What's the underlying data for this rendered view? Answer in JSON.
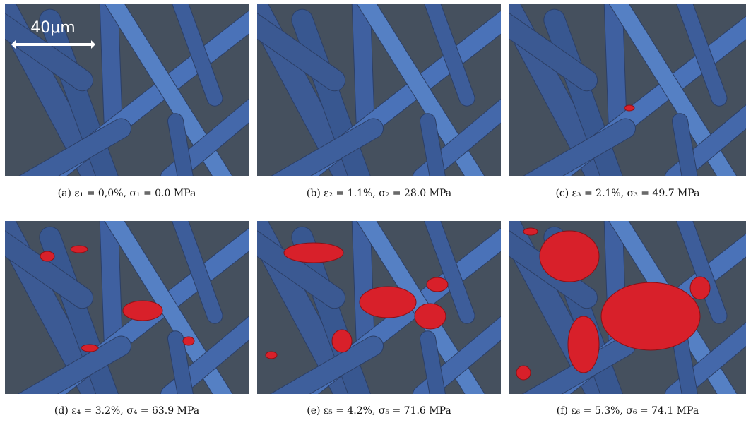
{
  "figure": {
    "scale_bar": "40μm",
    "panels": [
      {
        "caption": "(a) ε₁ = 0,0%, σ₁ = 0.0 MPa"
      },
      {
        "caption": "(b) ε₂ = 1.1%, σ₂ = 28.0 MPa"
      },
      {
        "caption": "(c) ε₃ = 2.1%, σ₃ = 49.7 MPa"
      },
      {
        "caption": "(d) ε₄ = 3.2%, σ₄ = 63.9 MPa"
      },
      {
        "caption": "(e) ε₅ = 4.2%, σ₅ = 71.6 MPa"
      },
      {
        "caption": "(f) ε₆ = 5.3%, σ₆ = 74.1 MPa"
      }
    ]
  }
}
